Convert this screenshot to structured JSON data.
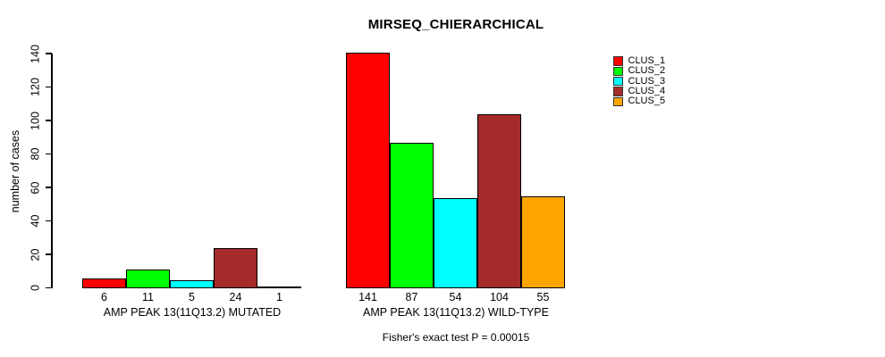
{
  "chart_data": {
    "type": "bar",
    "title": "MIRSEQ_CHIERARCHICAL",
    "ylabel": "number of cases",
    "xlabel": "",
    "ylim": [
      0,
      140
    ],
    "yticks": [
      0,
      20,
      40,
      60,
      80,
      100,
      120,
      140
    ],
    "grid": false,
    "legend_position": "top-right-outside",
    "bar_value_labels_shown": true,
    "categories": [
      "AMP PEAK 13(11Q13.2) MUTATED",
      "AMP PEAK 13(11Q13.2) WILD-TYPE"
    ],
    "series": [
      {
        "name": "CLUS_1",
        "color": "#FF0000",
        "values": [
          6,
          141
        ]
      },
      {
        "name": "CLUS_2",
        "color": "#00FF00",
        "values": [
          11,
          87
        ]
      },
      {
        "name": "CLUS_3",
        "color": "#00FFFF",
        "values": [
          5,
          54
        ]
      },
      {
        "name": "CLUS_4",
        "color": "#A52A2A",
        "values": [
          24,
          104
        ]
      },
      {
        "name": "CLUS_5",
        "color": "#FFA500",
        "values": [
          1,
          55
        ]
      }
    ],
    "footnote": "Fisher's exact test P = 0.00015"
  }
}
